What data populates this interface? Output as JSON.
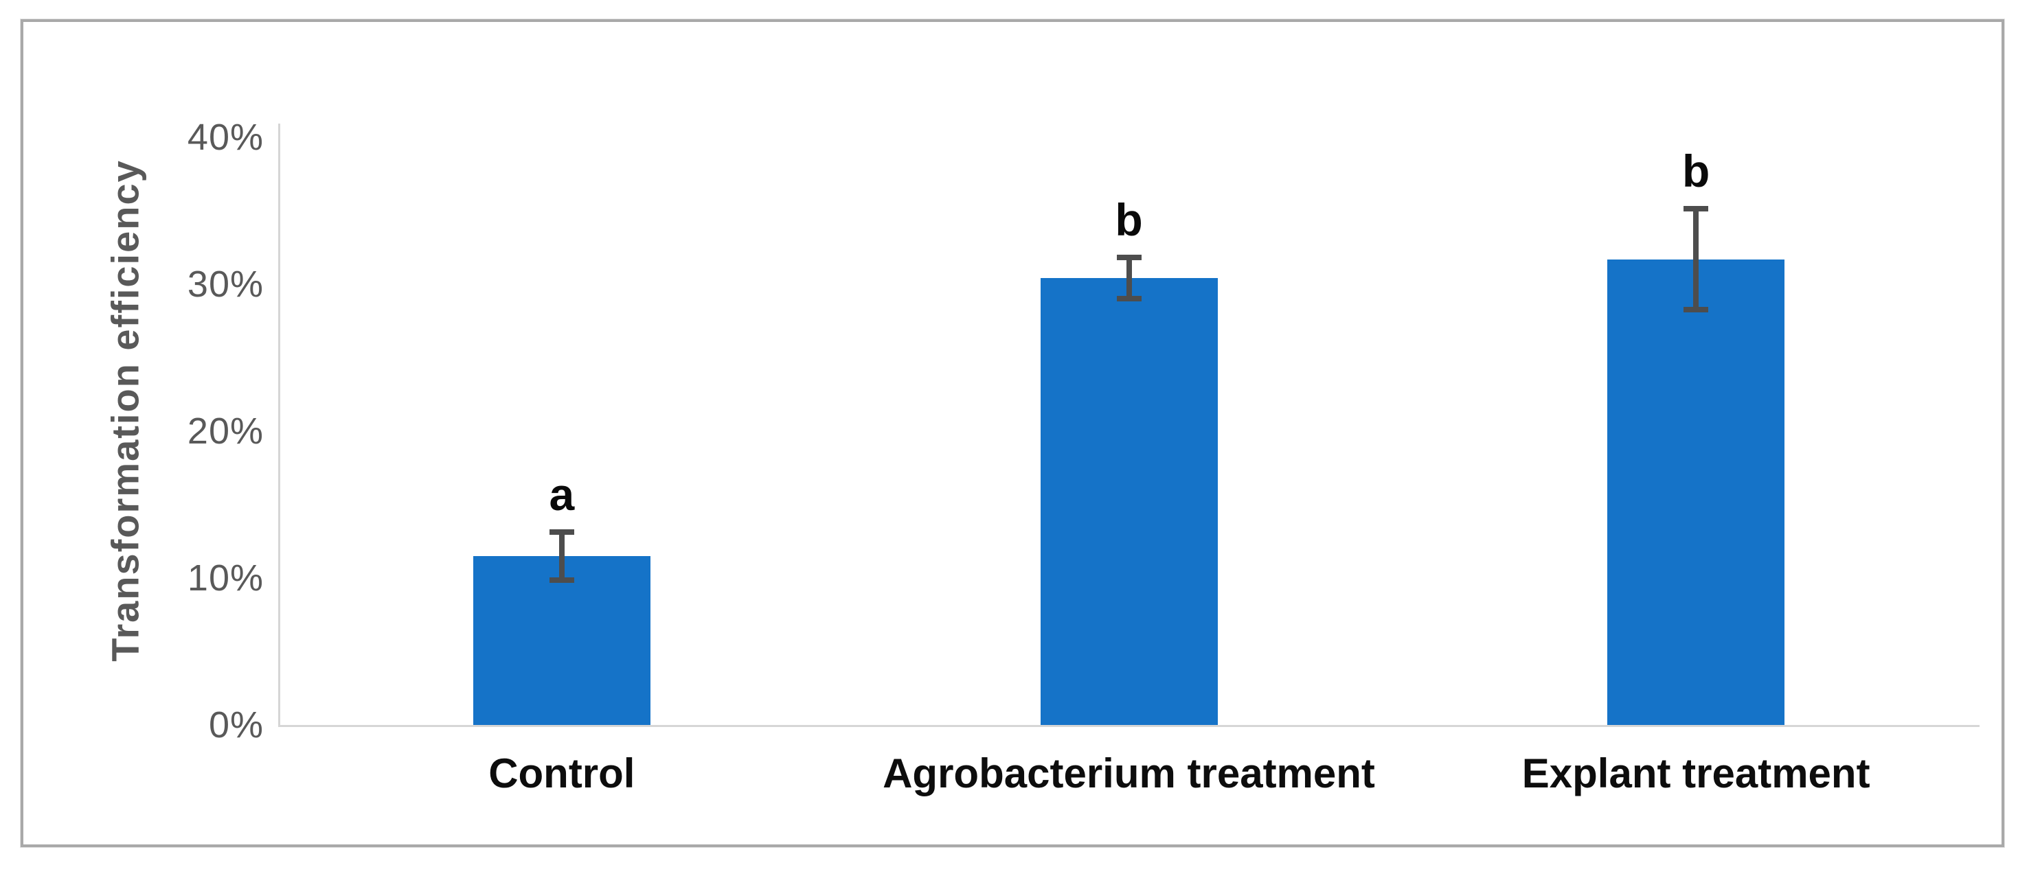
{
  "figure": {
    "kind": "embedded-bar-chart-figure",
    "background_color": "#ffffff",
    "frame_border_color": "#a9a9a9"
  },
  "chart_data": {
    "type": "bar",
    "title": "",
    "xlabel": "",
    "ylabel": "Transformation efficiency",
    "categories": [
      "Control",
      "Agrobacterium treatment",
      "Explant treatment"
    ],
    "values": [
      11.5,
      30.4,
      31.7
    ],
    "error_bars": [
      1.65,
      1.4,
      3.45
    ],
    "significance_letters": [
      "a",
      "b",
      "b"
    ],
    "y_ticks": [
      0,
      10,
      20,
      30,
      40
    ],
    "y_tick_labels": [
      "0%",
      "10%",
      "20%",
      "30%",
      "40%"
    ],
    "ylim": [
      0,
      40
    ],
    "grid": "off",
    "legend": "none",
    "bar_color": "#1573c8",
    "error_bar_color": "#4d4d4d",
    "axis_line_color": "#d6d6d6",
    "tick_label_color": "#595959",
    "category_label_color": "#0d0d0d",
    "significance_letter_color": "#0a0a0a"
  }
}
